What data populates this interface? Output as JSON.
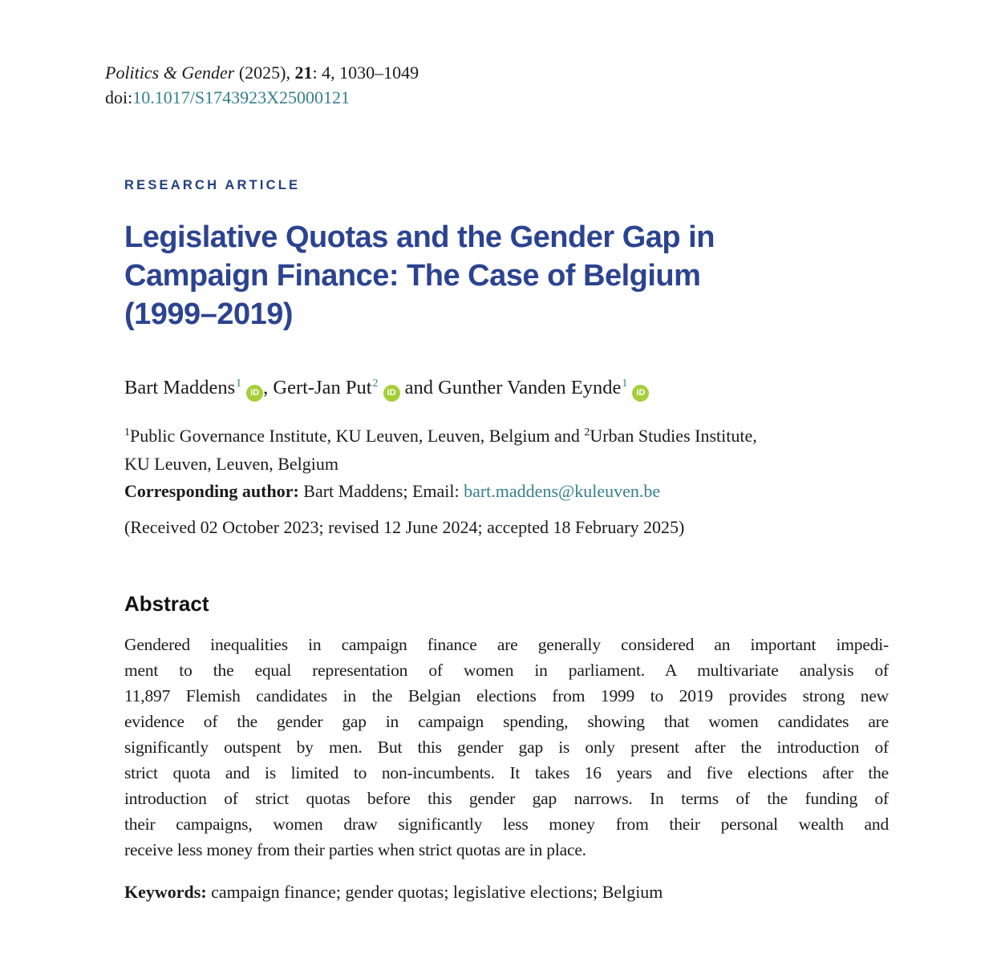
{
  "colors": {
    "title_navy": "#2c4390",
    "label_navy": "#24417f",
    "link_teal": "#377f8c",
    "orcid_green": "#A6CE39"
  },
  "header": {
    "journal_name": "Politics & Gender",
    "citation_mid": " (2025), ",
    "volume": "21",
    "citation_end": ": 4, 1030–1049",
    "doi_prefix": "doi:",
    "doi_link": "10.1017/S1743923X25000121"
  },
  "article": {
    "type_label": "RESEARCH ARTICLE",
    "title_lines": [
      "Legislative Quotas and the Gender Gap in",
      "Campaign Finance: The Case of Belgium",
      "(1999–2019)"
    ],
    "authors": {
      "a1_name": "Bart Maddens",
      "a1_sup": "1",
      "sep1": ", ",
      "a2_name": "Gert-Jan Put",
      "a2_sup": "2",
      "sep2": " and ",
      "a3_name": "Gunther Vanden Eynde",
      "a3_sup": "1"
    },
    "orcid_icon_text": "iD",
    "affiliations": {
      "sup1": "1",
      "line1_text1": "Public Governance Institute, KU Leuven, Leuven, Belgium and ",
      "sup2": "2",
      "line1_text2": "Urban Studies Institute,",
      "line2": "KU Leuven, Leuven, Belgium"
    },
    "corresponding": {
      "label": "Corresponding author:",
      "middle": " Bart Maddens; Email: ",
      "email": "bart.maddens@kuleuven.be"
    },
    "history": "(Received 02 October 2023; revised 12 June 2024; accepted 18 February 2025)"
  },
  "abstract": {
    "heading": "Abstract",
    "lines": [
      "Gendered inequalities in campaign finance are generally considered an important impedi-",
      "ment to the equal representation of women in parliament. A multivariate analysis of",
      "11,897 Flemish candidates in the Belgian elections from 1999 to 2019 provides strong new",
      "evidence of the gender gap in campaign spending, showing that women candidates are",
      "significantly outspent by men. But this gender gap is only present after the introduction of",
      "strict quota and is limited to non-incumbents. It takes 16 years and five elections after the",
      "introduction of strict quotas before this gender gap narrows. In terms of the funding of",
      "their campaigns, women draw significantly less money from their personal wealth and",
      "receive less money from their parties when strict quotas are in place."
    ]
  },
  "keywords": {
    "label": "Keywords:",
    "text": " campaign finance; gender quotas; legislative elections; Belgium"
  }
}
